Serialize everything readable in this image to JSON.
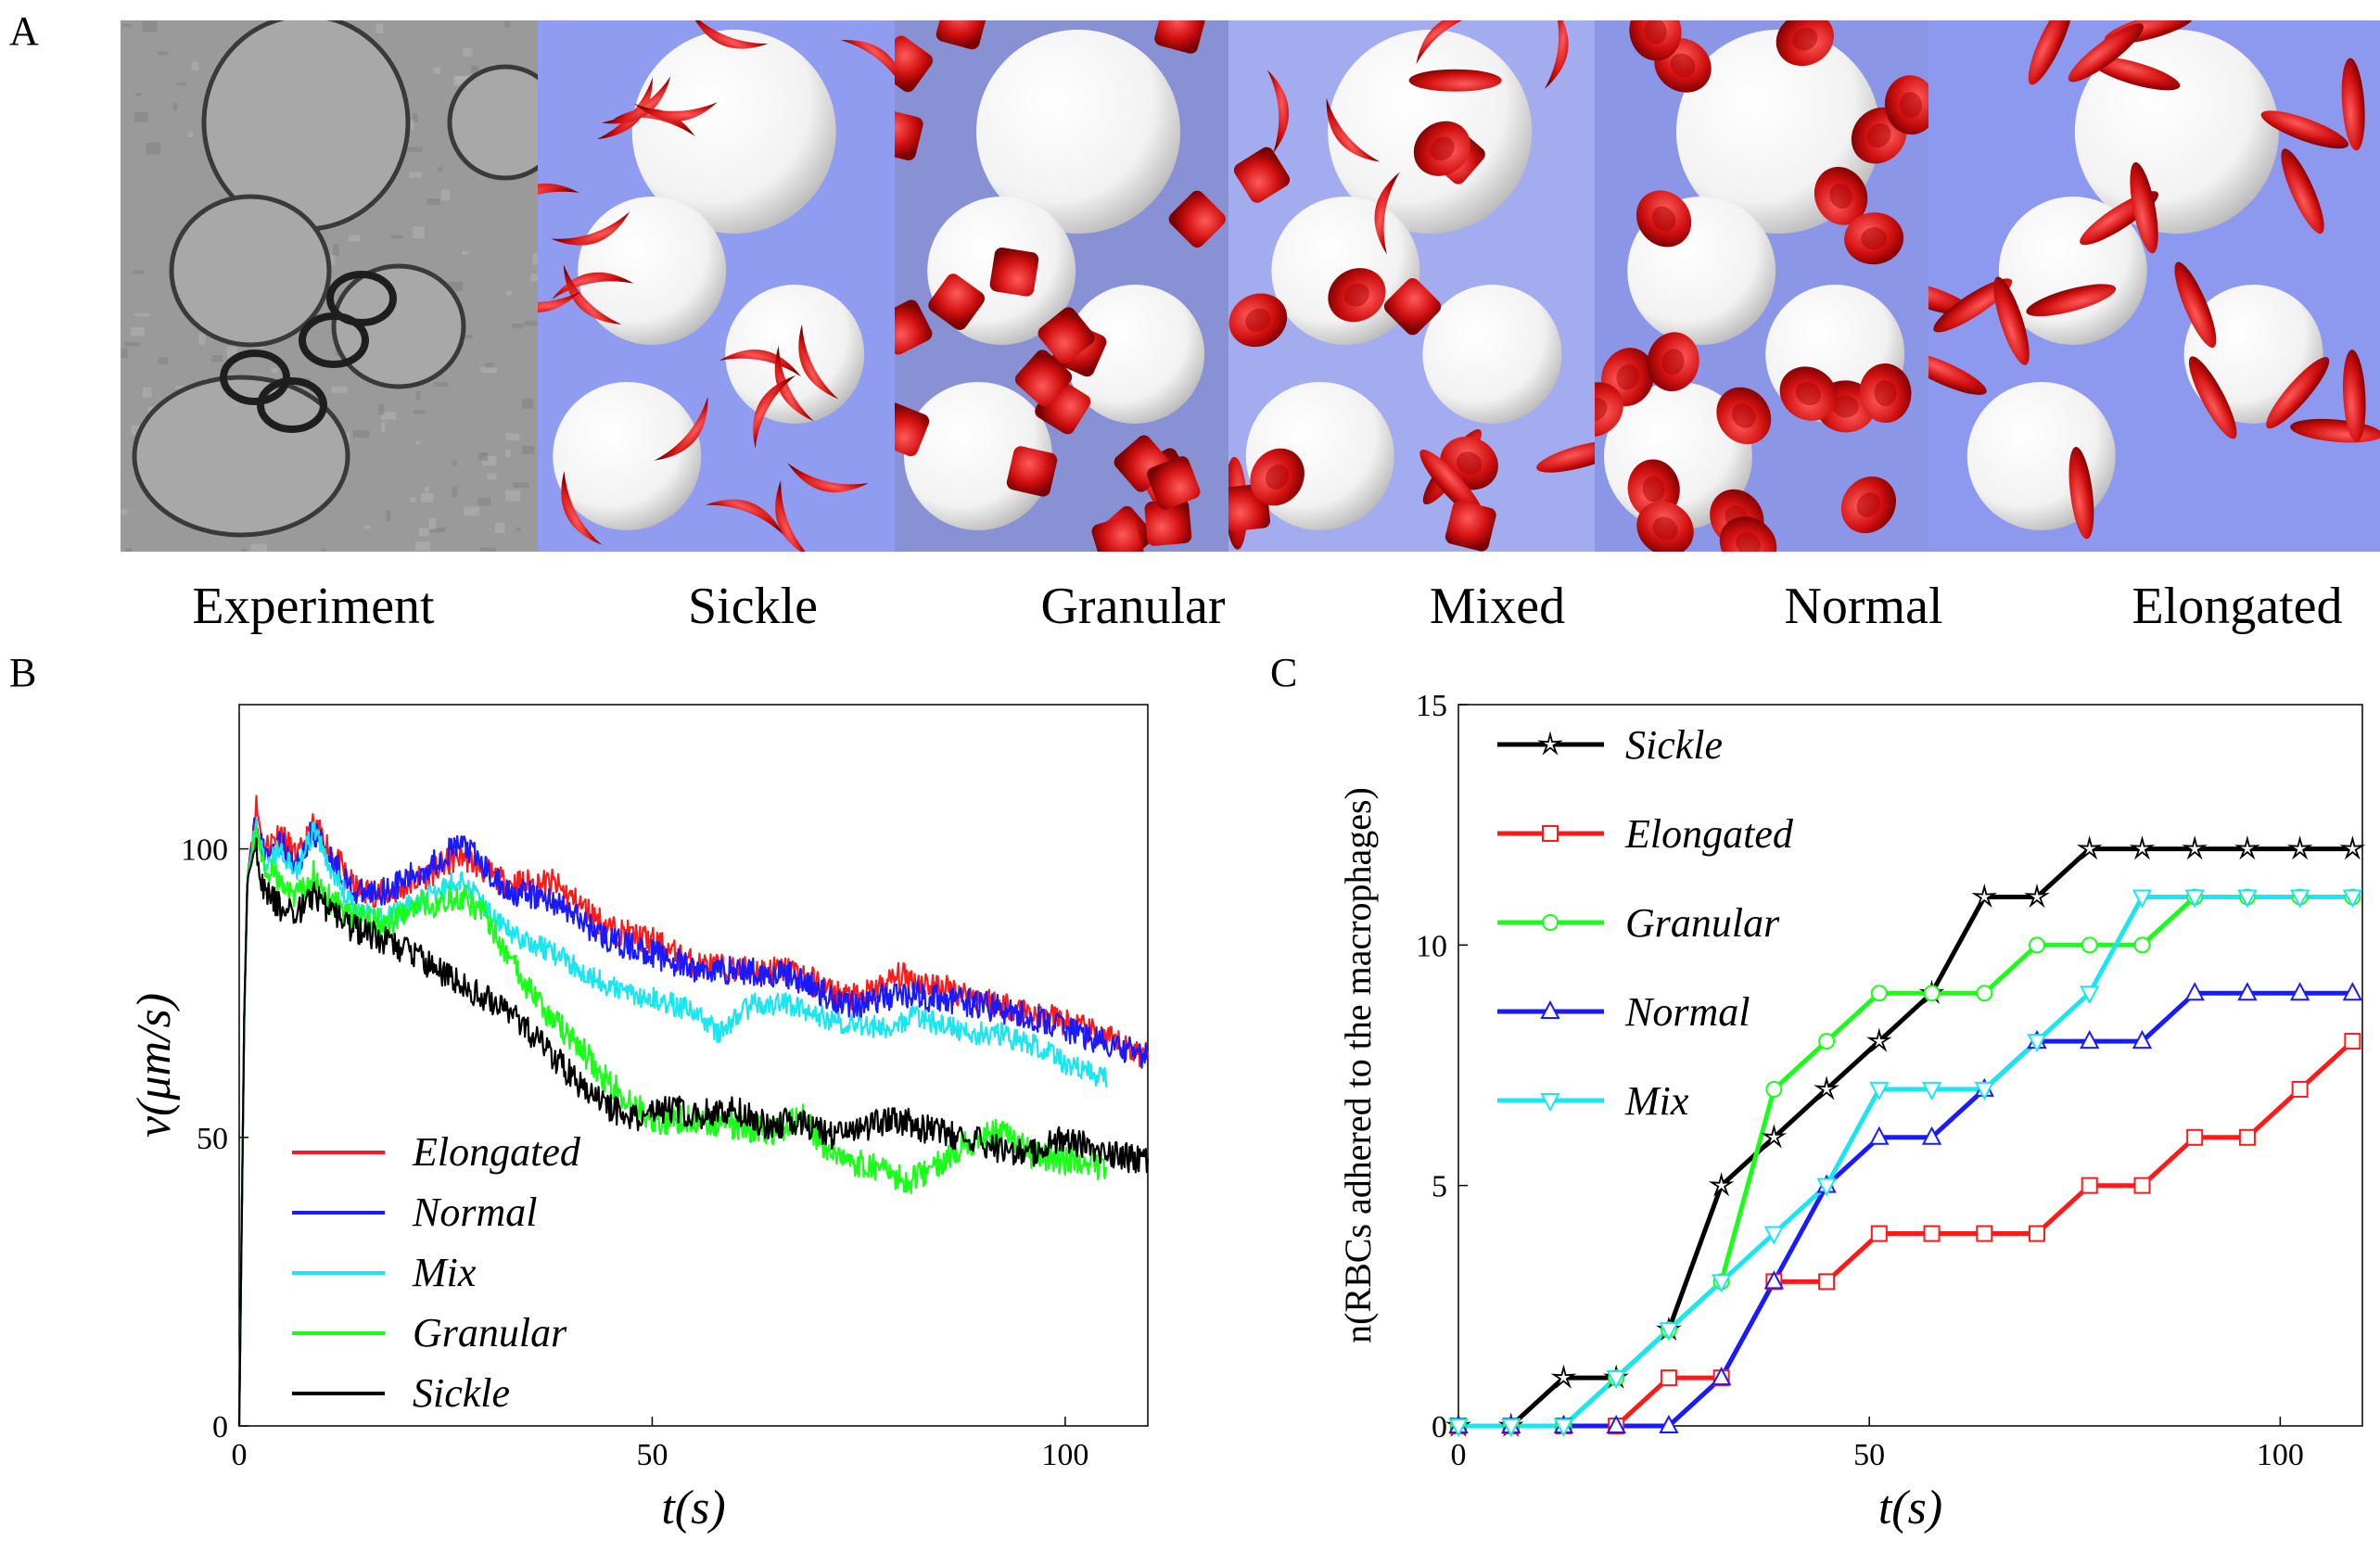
{
  "panel_letters": {
    "a": "A",
    "b": "B",
    "c": "C"
  },
  "image_strip": {
    "panels": [
      {
        "label": "Experiment",
        "kind": "experiment",
        "background": "#9a9a9a"
      },
      {
        "label": "Sickle",
        "kind": "sickle",
        "background": "#8f9cf0"
      },
      {
        "label": "Granular",
        "kind": "granular",
        "background": "#8891d4"
      },
      {
        "label": "Mixed",
        "kind": "mixed",
        "background": "#a2acee"
      },
      {
        "label": "Normal",
        "kind": "normal",
        "background": "#8c96e6"
      },
      {
        "label": "Elongated",
        "kind": "elongated",
        "background": "#8c99ee"
      }
    ]
  },
  "colors": {
    "sickle": "#000000",
    "elongated": "#ff1a1a",
    "normal": "#1a1aff",
    "mix": "#1ae6f0",
    "granular": "#1aff1a",
    "rbc": "#d11010",
    "macrophage": "#f2f2f2"
  },
  "chart_data": [
    {
      "type": "line",
      "panel": "B",
      "title": "",
      "xlabel": "t(s)",
      "ylabel": "v(μm/s)",
      "xlim": [
        0,
        110
      ],
      "ylim": [
        0,
        125
      ],
      "xticks": [
        0,
        50,
        100
      ],
      "yticks": [
        0,
        50,
        100
      ],
      "legend_position": "bottom-left",
      "series": [
        {
          "name": "Elongated",
          "color": "#ff1a1a",
          "noise": 2.5,
          "end": 110,
          "points": [
            [
              0,
              0
            ],
            [
              0.6,
              70
            ],
            [
              1,
              95
            ],
            [
              2,
              108
            ],
            [
              3,
              100
            ],
            [
              5,
              103
            ],
            [
              7,
              98
            ],
            [
              9,
              104
            ],
            [
              11,
              100
            ],
            [
              14,
              93
            ],
            [
              18,
              92
            ],
            [
              22,
              95
            ],
            [
              27,
              99
            ],
            [
              32,
              94
            ],
            [
              38,
              94
            ],
            [
              45,
              86
            ],
            [
              50,
              84
            ],
            [
              55,
              80
            ],
            [
              60,
              79
            ],
            [
              67,
              79
            ],
            [
              72,
              75
            ],
            [
              75,
              74
            ],
            [
              80,
              78
            ],
            [
              85,
              76
            ],
            [
              90,
              74
            ],
            [
              95,
              72
            ],
            [
              100,
              70
            ],
            [
              105,
              67
            ],
            [
              110,
              64
            ]
          ]
        },
        {
          "name": "Normal",
          "color": "#1a1aff",
          "noise": 2.5,
          "end": 110,
          "points": [
            [
              0,
              0
            ],
            [
              0.6,
              70
            ],
            [
              1,
              95
            ],
            [
              2,
              106
            ],
            [
              3,
              99
            ],
            [
              5,
              101
            ],
            [
              7,
              97
            ],
            [
              9,
              103
            ],
            [
              11,
              99
            ],
            [
              14,
              92
            ],
            [
              18,
              93
            ],
            [
              22,
              96
            ],
            [
              27,
              101
            ],
            [
              32,
              93
            ],
            [
              38,
              91
            ],
            [
              45,
              84
            ],
            [
              50,
              82
            ],
            [
              55,
              79
            ],
            [
              60,
              79
            ],
            [
              67,
              78
            ],
            [
              72,
              74
            ],
            [
              75,
              73
            ],
            [
              80,
              75
            ],
            [
              85,
              74
            ],
            [
              90,
              73
            ],
            [
              95,
              71
            ],
            [
              100,
              69
            ],
            [
              105,
              66
            ],
            [
              110,
              64
            ]
          ]
        },
        {
          "name": "Mix",
          "color": "#1ae6f0",
          "noise": 2.0,
          "end": 105,
          "points": [
            [
              0,
              0
            ],
            [
              0.6,
              70
            ],
            [
              1,
              95
            ],
            [
              2,
              104
            ],
            [
              3,
              98
            ],
            [
              5,
              100
            ],
            [
              7,
              96
            ],
            [
              9,
              103
            ],
            [
              11,
              97
            ],
            [
              14,
              89
            ],
            [
              18,
              88
            ],
            [
              22,
              91
            ],
            [
              27,
              95
            ],
            [
              32,
              86
            ],
            [
              38,
              82
            ],
            [
              45,
              76
            ],
            [
              50,
              74
            ],
            [
              55,
              72
            ],
            [
              58,
              68
            ],
            [
              62,
              73
            ],
            [
              67,
              73
            ],
            [
              72,
              70
            ],
            [
              78,
              69
            ],
            [
              82,
              71
            ],
            [
              88,
              68
            ],
            [
              92,
              68
            ],
            [
              96,
              66
            ],
            [
              100,
              63
            ],
            [
              105,
              60
            ]
          ]
        },
        {
          "name": "Granular",
          "color": "#1aff1a",
          "noise": 2.5,
          "end": 105,
          "points": [
            [
              0,
              0
            ],
            [
              0.6,
              70
            ],
            [
              1,
              95
            ],
            [
              2,
              103
            ],
            [
              3,
              96
            ],
            [
              5,
              95
            ],
            [
              7,
              92
            ],
            [
              9,
              96
            ],
            [
              11,
              91
            ],
            [
              14,
              88
            ],
            [
              18,
              87
            ],
            [
              22,
              90
            ],
            [
              27,
              92
            ],
            [
              30,
              88
            ],
            [
              33,
              80
            ],
            [
              37,
              72
            ],
            [
              41,
              66
            ],
            [
              45,
              59
            ],
            [
              50,
              53
            ],
            [
              55,
              53
            ],
            [
              60,
              52
            ],
            [
              65,
              51
            ],
            [
              68,
              54
            ],
            [
              71,
              48
            ],
            [
              74,
              46
            ],
            [
              78,
              44
            ],
            [
              81,
              42
            ],
            [
              84,
              45
            ],
            [
              88,
              49
            ],
            [
              92,
              51
            ],
            [
              96,
              47
            ],
            [
              100,
              46
            ],
            [
              105,
              45
            ]
          ]
        },
        {
          "name": "Sickle",
          "color": "#000000",
          "noise": 2.5,
          "end": 110,
          "points": [
            [
              0,
              0
            ],
            [
              0.6,
              70
            ],
            [
              1,
              95
            ],
            [
              2,
              100
            ],
            [
              3,
              93
            ],
            [
              5,
              90
            ],
            [
              7,
              89
            ],
            [
              9,
              92
            ],
            [
              11,
              89
            ],
            [
              14,
              86
            ],
            [
              18,
              84
            ],
            [
              22,
              81
            ],
            [
              26,
              77
            ],
            [
              30,
              74
            ],
            [
              34,
              70
            ],
            [
              38,
              64
            ],
            [
              42,
              58
            ],
            [
              45,
              55
            ],
            [
              48,
              53
            ],
            [
              52,
              55
            ],
            [
              56,
              54
            ],
            [
              60,
              55
            ],
            [
              64,
              52
            ],
            [
              68,
              53
            ],
            [
              72,
              50
            ],
            [
              76,
              52
            ],
            [
              80,
              53
            ],
            [
              84,
              51
            ],
            [
              88,
              50
            ],
            [
              92,
              48
            ],
            [
              96,
              47
            ],
            [
              100,
              50
            ],
            [
              105,
              47
            ],
            [
              110,
              46
            ]
          ]
        }
      ]
    },
    {
      "type": "line",
      "panel": "C",
      "title": "",
      "xlabel": "t(s)",
      "ylabel": "n(RBCs adhered to the macrophages)",
      "xlim": [
        0,
        110
      ],
      "ylim": [
        0,
        15
      ],
      "xticks": [
        0,
        50,
        100
      ],
      "yticks": [
        0,
        5,
        10,
        15
      ],
      "legend_position": "top-left",
      "series": [
        {
          "name": "Sickle",
          "marker": "star",
          "color": "#000000",
          "x": [
            0,
            6.4,
            12.8,
            19.2,
            25.6,
            32,
            38.4,
            44.8,
            51.2,
            57.6,
            64,
            70.4,
            76.8,
            83.2,
            89.6,
            96,
            102.4,
            108.8
          ],
          "y": [
            0,
            0,
            1,
            1,
            2,
            5,
            6,
            7,
            8,
            9,
            11,
            11,
            12,
            12,
            12,
            12,
            12,
            12
          ]
        },
        {
          "name": "Elongated",
          "marker": "square",
          "color": "#ff1a1a",
          "x": [
            0,
            6.4,
            12.8,
            19.2,
            25.6,
            32,
            38.4,
            44.8,
            51.2,
            57.6,
            64,
            70.4,
            76.8,
            83.2,
            89.6,
            96,
            102.4,
            108.8
          ],
          "y": [
            0,
            0,
            0,
            0,
            1,
            1,
            3,
            3,
            4,
            4,
            4,
            4,
            5,
            5,
            6,
            6,
            7,
            8
          ]
        },
        {
          "name": "Granular",
          "marker": "circle",
          "color": "#1aff1a",
          "x": [
            0,
            6.4,
            12.8,
            19.2,
            25.6,
            32,
            38.4,
            44.8,
            51.2,
            57.6,
            64,
            70.4,
            76.8,
            83.2,
            89.6,
            96,
            102.4,
            108.8
          ],
          "y": [
            0,
            0,
            0,
            1,
            2,
            3,
            7,
            8,
            9,
            9,
            9,
            10,
            10,
            10,
            11,
            11,
            11,
            11
          ]
        },
        {
          "name": "Normal",
          "marker": "triangle-up",
          "color": "#1a1aff",
          "x": [
            0,
            6.4,
            12.8,
            19.2,
            25.6,
            32,
            38.4,
            44.8,
            51.2,
            57.6,
            64,
            70.4,
            76.8,
            83.2,
            89.6,
            96,
            102.4,
            108.8
          ],
          "y": [
            0,
            0,
            0,
            0,
            0,
            1,
            3,
            5,
            6,
            6,
            7,
            8,
            8,
            8,
            9,
            9,
            9,
            9
          ]
        },
        {
          "name": "Mix",
          "marker": "triangle-down",
          "color": "#1ae6f0",
          "x": [
            0,
            6.4,
            12.8,
            19.2,
            25.6,
            32,
            38.4,
            44.8,
            51.2,
            57.6,
            64,
            70.4,
            76.8,
            83.2,
            89.6,
            96,
            102.4,
            108.8
          ],
          "y": [
            0,
            0,
            0,
            1,
            2,
            3,
            4,
            5,
            7,
            7,
            7,
            8,
            9,
            11,
            11,
            11,
            11,
            11
          ]
        }
      ]
    }
  ]
}
